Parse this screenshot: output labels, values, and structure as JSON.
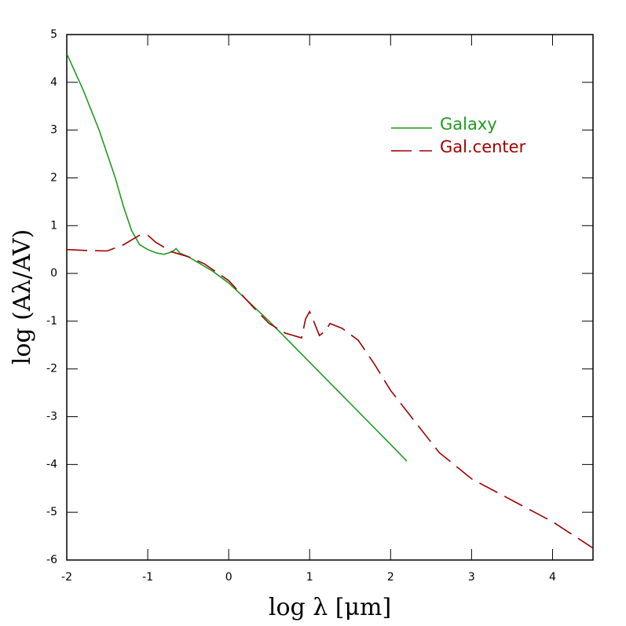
{
  "chart_data": {
    "type": "line",
    "xlabel": "log λ [μm]",
    "ylabel": "log (Aλ/AV)",
    "xlim": [
      -2,
      4.5
    ],
    "ylim": [
      -6,
      5
    ],
    "xticks": [
      -2,
      -1,
      0,
      1,
      2,
      3,
      4
    ],
    "yticks": [
      -6,
      -5,
      -4,
      -3,
      -2,
      -1,
      0,
      1,
      2,
      3,
      4,
      5
    ],
    "legend": "upper right",
    "series": [
      {
        "name": "Galaxy",
        "color": "#1f9a1f",
        "linestyle": "solid",
        "x": [
          -2,
          -1.8,
          -1.6,
          -1.4,
          -1.3,
          -1.2,
          -1.1,
          -1.0,
          -0.9,
          -0.8,
          -0.7,
          -0.65,
          -0.6,
          -0.5,
          -0.4,
          -0.2,
          0,
          0.5,
          1.0,
          1.5,
          2.0,
          2.2
        ],
        "values": [
          4.6,
          3.85,
          3.0,
          2.0,
          1.4,
          0.9,
          0.6,
          0.5,
          0.43,
          0.4,
          0.45,
          0.52,
          0.42,
          0.35,
          0.25,
          0.05,
          -0.2,
          -1.0,
          -1.86,
          -2.72,
          -3.58,
          -3.93
        ]
      },
      {
        "name": "Gal.center",
        "color": "#a00000",
        "linestyle": "dashed",
        "x": [
          -2,
          -1.75,
          -1.5,
          -1.3,
          -1.1,
          -1.0,
          -0.9,
          -0.7,
          -0.5,
          -0.3,
          0,
          0.3,
          0.5,
          0.7,
          0.9,
          0.95,
          1.0,
          1.05,
          1.12,
          1.2,
          1.25,
          1.4,
          1.6,
          1.8,
          2.0,
          2.3,
          2.6,
          3.0,
          3.5,
          4.0,
          4.5
        ],
        "values": [
          0.5,
          0.48,
          0.47,
          0.6,
          0.8,
          0.8,
          0.65,
          0.45,
          0.35,
          0.2,
          -0.15,
          -0.7,
          -1.05,
          -1.25,
          -1.35,
          -0.95,
          -0.8,
          -1.0,
          -1.3,
          -1.2,
          -1.05,
          -1.15,
          -1.4,
          -1.9,
          -2.45,
          -3.1,
          -3.75,
          -4.3,
          -4.75,
          -5.2,
          -5.75
        ]
      }
    ]
  }
}
